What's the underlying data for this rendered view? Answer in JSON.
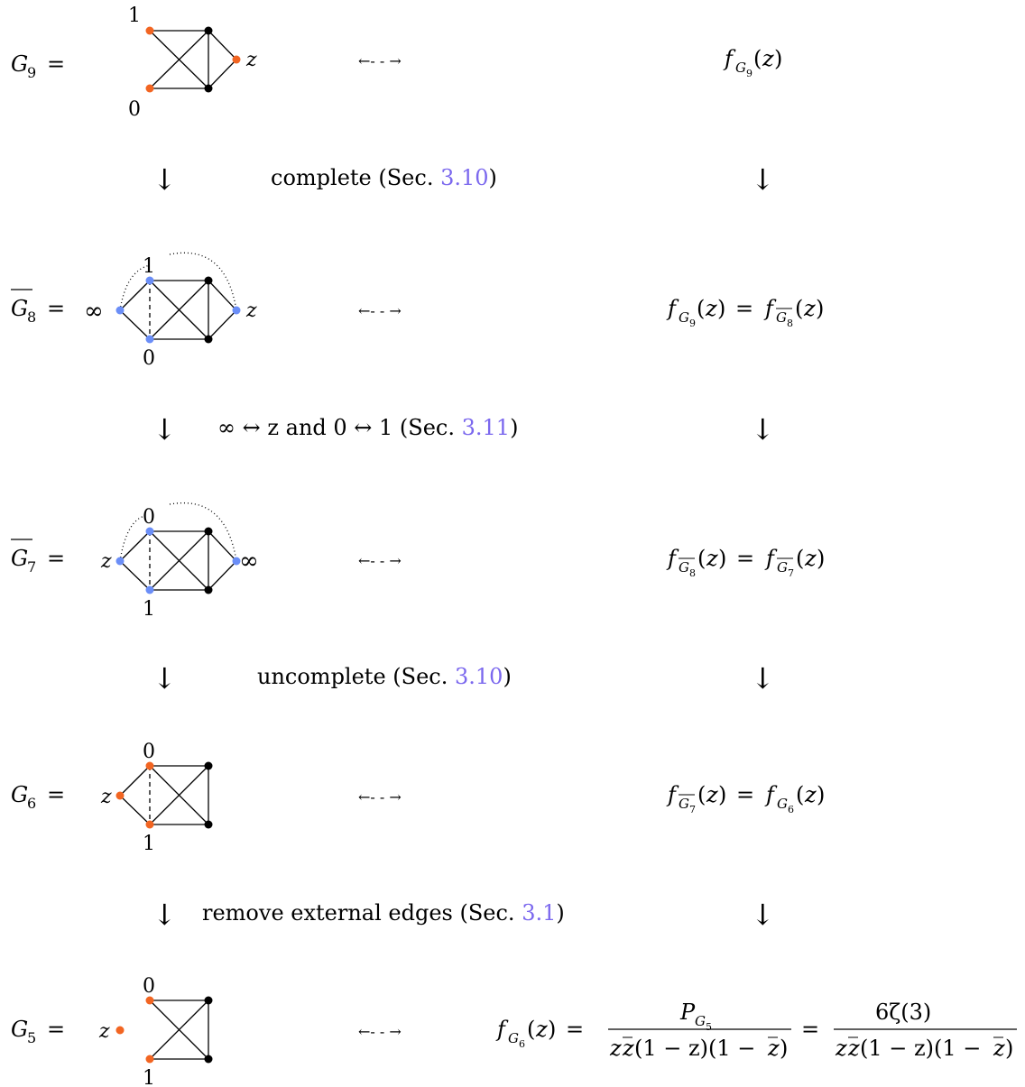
{
  "colors": {
    "orange": "#f26522",
    "blue": "#6b8ef7",
    "black": "#000000",
    "ref": "#7b68ee"
  },
  "arrows": {
    "double": "←- - →",
    "down": "↓"
  },
  "symbols": {
    "infinity": "∞",
    "one": "1",
    "zero": "0",
    "z": "z"
  },
  "rows": [
    {
      "graph": "G9",
      "label_main": "G",
      "label_sub": "9",
      "label_bar": false,
      "rhs": "f_{G9}(z)"
    },
    {
      "graph": "G8bar",
      "label_main": "G",
      "label_sub": "8",
      "label_bar": true,
      "rhs": "f_{G9}(z) = f_{G8bar}(z)"
    },
    {
      "graph": "G7bar",
      "label_main": "G",
      "label_sub": "7",
      "label_bar": true,
      "rhs": "f_{G8bar}(z) = f_{G7bar}(z)"
    },
    {
      "graph": "G6",
      "label_main": "G",
      "label_sub": "6",
      "label_bar": false,
      "rhs": "f_{G7bar}(z) = f_{G6}(z)"
    },
    {
      "graph": "G5",
      "label_main": "G",
      "label_sub": "5",
      "label_bar": false,
      "rhs": "f_{G6}(z) = P_{G5}/(z zbar(1-z)(1-zbar)) = 6ζ(3)/(z zbar(1-z)(1-zbar))"
    }
  ],
  "steps": [
    {
      "text": "complete (Sec. ",
      "ref": "3.10",
      "close": ")"
    },
    {
      "text": "∞ ↔ z and 0 ↔ 1 (Sec. ",
      "ref": "3.11",
      "close": ")"
    },
    {
      "text": "uncomplete (Sec. ",
      "ref": "3.10",
      "close": ")"
    },
    {
      "text": "remove external edges (Sec. ",
      "ref": "3.1",
      "close": ")"
    }
  ],
  "formula": {
    "f": "f",
    "G": "G",
    "z": "z",
    "eq": "=",
    "open": "(",
    "close": ")",
    "P": "P",
    "numerator2": "6ζ(3)",
    "den_z": "z",
    "den_rest": "(1 − z)(1 − ",
    "den_close": ")"
  }
}
